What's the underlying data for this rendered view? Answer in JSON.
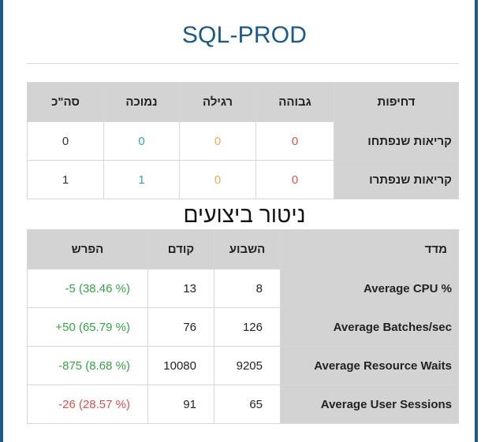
{
  "title": "SQL-PROD",
  "tickets": {
    "headers": [
      "דחיפות",
      "גבוהה",
      "רגילה",
      "נמוכה",
      "סה\"כ"
    ],
    "rows": [
      {
        "label": "קריאות שנפתחו",
        "high": "0",
        "normal": "0",
        "low": "0",
        "total": "0"
      },
      {
        "label": "קריאות שנפתרו",
        "high": "0",
        "normal": "0",
        "low": "1",
        "total": "1"
      }
    ]
  },
  "performance": {
    "title": "ניטור ביצועים",
    "headers": [
      "מדד",
      "השבוע",
      "קודם",
      "הפרש"
    ],
    "rows": [
      {
        "metric": "Average CPU %",
        "this_week": "8",
        "previous": "13",
        "diff": "-5 (38.46 %)",
        "diff_color": "green"
      },
      {
        "metric": "Average Batches/sec",
        "this_week": "126",
        "previous": "76",
        "diff": "+50 (65.79 %)",
        "diff_color": "green"
      },
      {
        "metric": "Average Resource Waits",
        "this_week": "9205",
        "previous": "10080",
        "diff": "-875 (8.68 %)",
        "diff_color": "green"
      },
      {
        "metric": "Average User Sessions",
        "this_week": "65",
        "previous": "91",
        "diff": "-26 (28.57 %)",
        "diff_color": "red"
      }
    ]
  },
  "colors": {
    "title": "#1b5a86",
    "high": "#d9534f",
    "normal": "#f0ad4e",
    "low": "#31a0c2",
    "positive": "#3aa048",
    "negative": "#d9534f",
    "header_bg": "#d3d3d3"
  }
}
